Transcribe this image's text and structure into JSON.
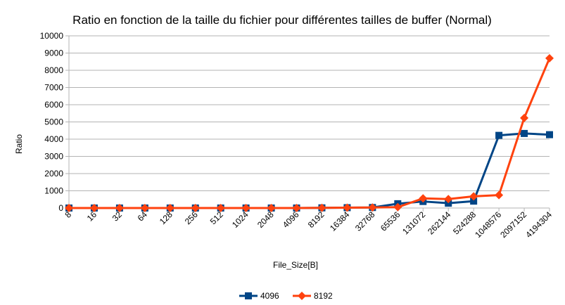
{
  "chart_data": {
    "type": "line",
    "title": "Ratio en fonction de la taille du fichier pour différentes tailles de buffer (Normal)",
    "xlabel": "File_Size[B]",
    "ylabel": "Ratio",
    "categories": [
      "8",
      "16",
      "32",
      "64",
      "128",
      "256",
      "512",
      "1024",
      "2048",
      "4096",
      "8192",
      "16384",
      "32768",
      "65536",
      "131072",
      "262144",
      "524288",
      "1048576",
      "2097152",
      "4194304"
    ],
    "ylim": [
      0,
      10000
    ],
    "yticks": [
      0,
      1000,
      2000,
      3000,
      4000,
      5000,
      6000,
      7000,
      8000,
      9000,
      10000
    ],
    "grid": true,
    "legend_position": "bottom",
    "series": [
      {
        "name": "4096",
        "color": "#004586",
        "marker": "square",
        "values": [
          0,
          0,
          0,
          0,
          0,
          0,
          0,
          0,
          0,
          0,
          10,
          20,
          30,
          250,
          380,
          280,
          400,
          4220,
          4330,
          4260
        ]
      },
      {
        "name": "8192",
        "color": "#ff420e",
        "marker": "diamond",
        "values": [
          0,
          0,
          0,
          0,
          0,
          0,
          0,
          0,
          0,
          0,
          10,
          20,
          30,
          50,
          560,
          520,
          680,
          750,
          5230,
          8700
        ]
      }
    ]
  }
}
